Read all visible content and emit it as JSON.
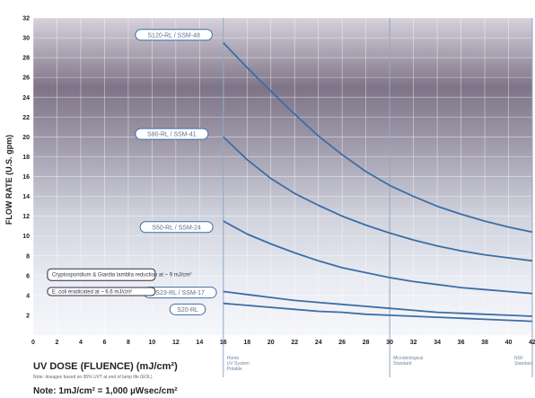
{
  "chart_data": {
    "type": "line",
    "ylabel": "FLOW RATE (U.S. gpm)",
    "xlabel": "UV DOSE (FLUENCE) (mJ/cm²)",
    "xlim": [
      0,
      42
    ],
    "ylim": [
      0,
      32
    ],
    "x_ticks": [
      0,
      2,
      4,
      6,
      8,
      10,
      12,
      14,
      16,
      18,
      20,
      22,
      24,
      26,
      28,
      30,
      32,
      34,
      36,
      38,
      40,
      42
    ],
    "x_tick_labels": [
      "0",
      "2",
      "4",
      "6",
      "8",
      "10",
      "12",
      "14",
      "16",
      "18",
      "20",
      "22",
      "24",
      "26",
      "28",
      "30",
      "32",
      "34",
      "36",
      "38",
      "40",
      "42"
    ],
    "y_ticks": [
      2,
      4,
      6,
      8,
      10,
      12,
      14,
      16,
      18,
      20,
      22,
      24,
      26,
      28,
      30,
      32
    ],
    "y_tick_labels": [
      "2",
      "4",
      "6",
      "8",
      "10",
      "12",
      "14",
      "16",
      "18",
      "20",
      "22",
      "24",
      "26",
      "28",
      "30",
      "32"
    ],
    "grid": true,
    "series": [
      {
        "name": "S120-RL / SSM-48",
        "x": [
          16,
          18,
          20,
          22,
          24,
          26,
          28,
          30,
          32,
          34,
          36,
          38,
          40,
          42
        ],
        "y": [
          29.5,
          27,
          24.6,
          22.3,
          20.1,
          18.2,
          16.5,
          15.1,
          14,
          13,
          12.2,
          11.5,
          10.9,
          10.4
        ]
      },
      {
        "name": "S80-RL / SSM-41",
        "x": [
          16,
          18,
          20,
          22,
          24,
          26,
          28,
          30,
          32,
          34,
          36,
          38,
          40,
          42
        ],
        "y": [
          20,
          17.7,
          15.8,
          14.3,
          13.1,
          12,
          11.1,
          10.3,
          9.6,
          9,
          8.5,
          8.1,
          7.8,
          7.5
        ]
      },
      {
        "name": "S50-RL / SSM-24",
        "x": [
          16,
          18,
          20,
          22,
          24,
          26,
          28,
          30,
          32,
          34,
          36,
          38,
          40,
          42
        ],
        "y": [
          11.5,
          10.2,
          9.2,
          8.3,
          7.5,
          6.8,
          6.3,
          5.8,
          5.4,
          5.1,
          4.8,
          4.6,
          4.4,
          4.2
        ]
      },
      {
        "name": "S23-RL / SSM-17",
        "x": [
          16,
          18,
          20,
          22,
          24,
          26,
          28,
          30,
          32,
          34,
          36,
          38,
          40,
          42
        ],
        "y": [
          4.4,
          4.1,
          3.8,
          3.5,
          3.3,
          3.1,
          2.9,
          2.7,
          2.5,
          2.3,
          2.2,
          2.1,
          2,
          1.9
        ]
      },
      {
        "name": "S20-RL",
        "x": [
          16,
          18,
          20,
          22,
          24,
          26,
          28,
          30,
          32,
          34,
          36,
          38,
          40,
          42
        ],
        "y": [
          3.2,
          3,
          2.8,
          2.6,
          2.4,
          2.3,
          2.1,
          2,
          1.9,
          1.8,
          1.7,
          1.6,
          1.5,
          1.4
        ]
      }
    ],
    "annotations": [
      "Cryptosporidium & Giardia lamblia reduction at ~ 9 mJ/cm²",
      "E. coli eradicated at ~ 6.6 mJ/cm²"
    ],
    "line_color": "#3b6ea5"
  },
  "notes": {
    "note_small": "Note: dosages based on 95% UVT at end of lamp life (EOL)",
    "note_main": "Note: 1mJ/cm² = 1,000 µWsec/cm²"
  },
  "region_labels": [
    {
      "x": 16,
      "text": "Home\nUV System\nPotable"
    },
    {
      "x": 30,
      "text": "Microbiological\nStandard"
    },
    {
      "x": 42,
      "text": "NSF\nStandard"
    }
  ]
}
